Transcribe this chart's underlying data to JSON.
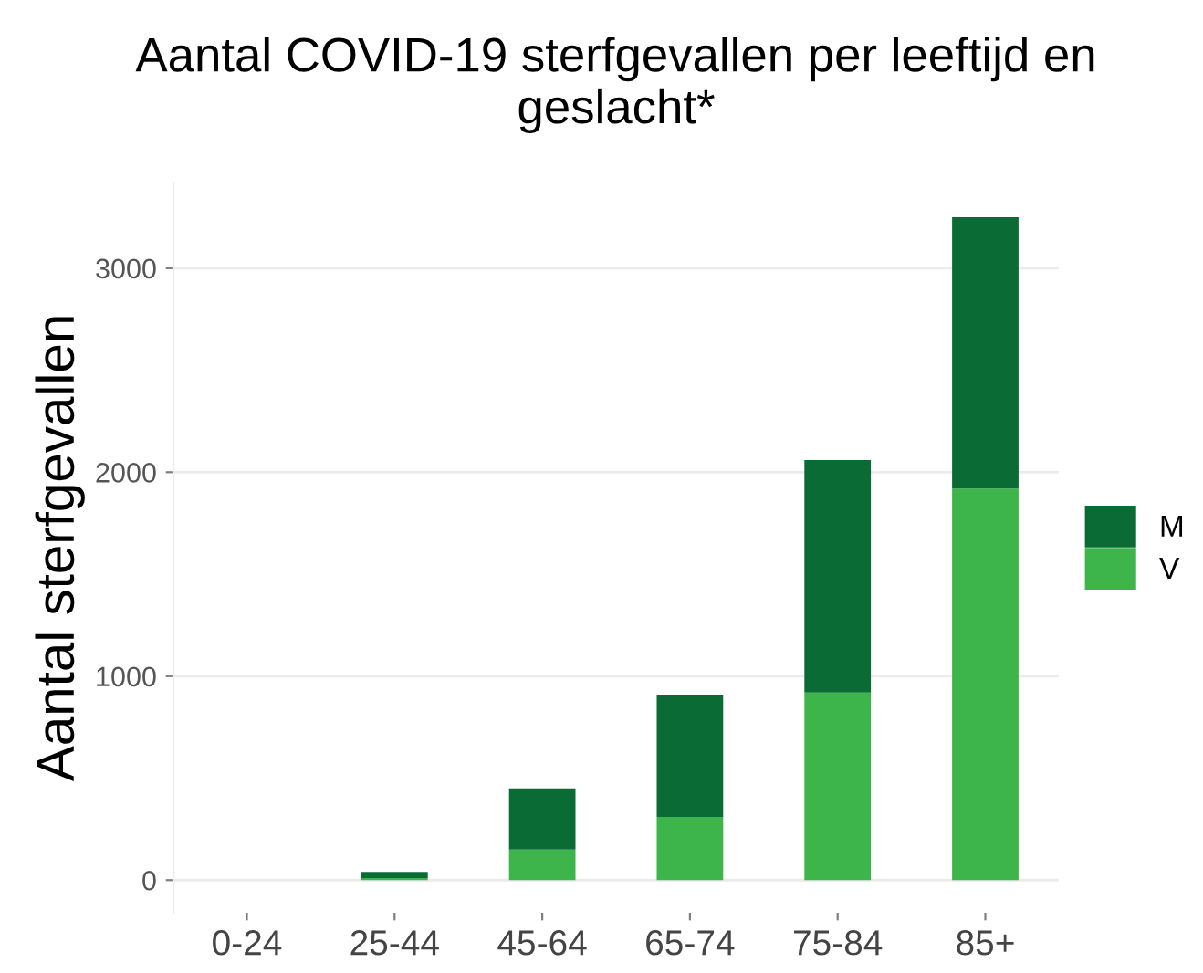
{
  "chart_data": {
    "type": "bar",
    "title": "Aantal COVID-19 sterfgevallen per leeftijd en geslacht*",
    "ylabel": "Aantal sterfgevallen",
    "categories": [
      "0-24",
      "25-44",
      "45-64",
      "65-74",
      "75-84",
      "85+"
    ],
    "stacked": true,
    "series": [
      {
        "name": "V",
        "color": "#3db54a",
        "values": [
          0,
          10,
          150,
          310,
          920,
          1920
        ]
      },
      {
        "name": "M",
        "color": "#0a6b34",
        "values": [
          0,
          30,
          300,
          600,
          1140,
          1330
        ]
      }
    ],
    "ylim": [
      -160,
      3420
    ],
    "yticks": [
      0,
      1000,
      2000,
      3000
    ],
    "grid": "y",
    "legend": "right"
  }
}
